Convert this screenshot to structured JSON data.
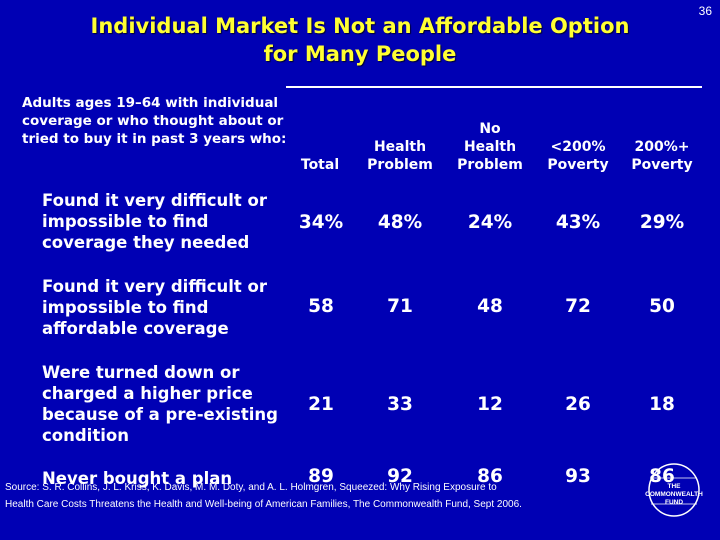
{
  "slide": {
    "number": "36",
    "title_line1": "Individual Market Is Not an Affordable Option",
    "title_line2": "for Many People"
  },
  "table": {
    "question": "Adults ages 19–64 with individual coverage or who thought about or tried to buy it in past 3 years who:",
    "columns": [
      {
        "lines": [
          "Total"
        ]
      },
      {
        "lines": [
          "Health",
          "Problem"
        ]
      },
      {
        "lines": [
          "No",
          "Health",
          "Problem"
        ]
      },
      {
        "lines": [
          "<200%",
          "Poverty"
        ]
      },
      {
        "lines": [
          "200%+",
          "Poverty"
        ]
      }
    ],
    "rows": [
      {
        "label": "Found it very difficult or impossible to find coverage they needed",
        "values": [
          "34%",
          "48%",
          "24%",
          "43%",
          "29%"
        ]
      },
      {
        "label": "Found it very difficult or impossible to find affordable coverage",
        "values": [
          "58",
          "71",
          "48",
          "72",
          "50"
        ]
      },
      {
        "label": "Were turned down or charged a higher price because of a pre-existing condition",
        "values": [
          "21",
          "33",
          "12",
          "26",
          "18"
        ]
      },
      {
        "label": "Never bought a plan",
        "values": [
          "89",
          "92",
          "86",
          "93",
          "86"
        ]
      }
    ]
  },
  "source": {
    "line1": "Source: S. R. Collins, J. L. Kriss, K. Davis, M. M. Doty, and A. L. Holmgren, Squeezed: Why Rising Exposure to",
    "line2": "Health Care Costs Threatens the Health and Well-being of American Families, The Commonwealth Fund, Sept 2006."
  },
  "logo": {
    "icon": "commonwealth-fund-logo",
    "line1": "THE",
    "line2": "COMMONWEALTH",
    "line3": "FUND"
  },
  "colors": {
    "background": "#0000b4",
    "title": "#ffff33",
    "text": "#ffffff"
  }
}
